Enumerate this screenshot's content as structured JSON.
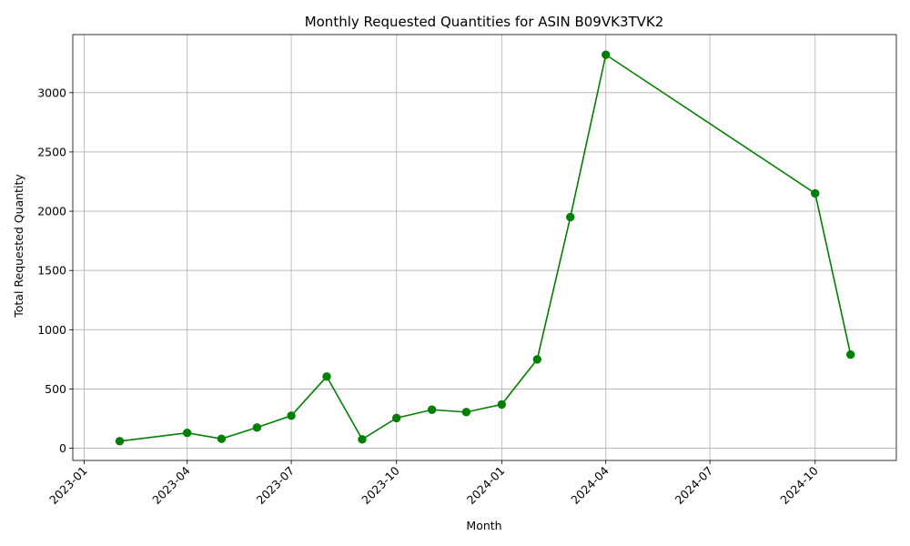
{
  "chart_data": {
    "type": "line",
    "title": "Monthly Requested Quantities for ASIN B09VK3TVK2",
    "xlabel": "Month",
    "ylabel": "Total Requested Quantity",
    "x": [
      "2023-02-01",
      "2023-04-01",
      "2023-05-01",
      "2023-06-01",
      "2023-07-01",
      "2023-08-01",
      "2023-09-01",
      "2023-10-01",
      "2023-11-01",
      "2023-12-01",
      "2024-01-01",
      "2024-02-01",
      "2024-03-01",
      "2024-04-01",
      "2024-10-01",
      "2024-11-01"
    ],
    "series": [
      {
        "values": [
          60,
          130,
          80,
          175,
          275,
          605,
          75,
          255,
          325,
          305,
          370,
          750,
          1950,
          3320,
          2150,
          790
        ],
        "color": "#008000",
        "marker": "circle"
      }
    ],
    "xticks": [
      "2023-01",
      "2023-04",
      "2023-07",
      "2023-10",
      "2024-01",
      "2024-04",
      "2024-07",
      "2024-10"
    ],
    "yticks": [
      0,
      500,
      1000,
      1500,
      2000,
      2500,
      3000
    ],
    "xlim": [
      "2022-12-22",
      "2024-12-11"
    ],
    "ylim": [
      -103,
      3490
    ],
    "grid": true,
    "legend": "none"
  }
}
